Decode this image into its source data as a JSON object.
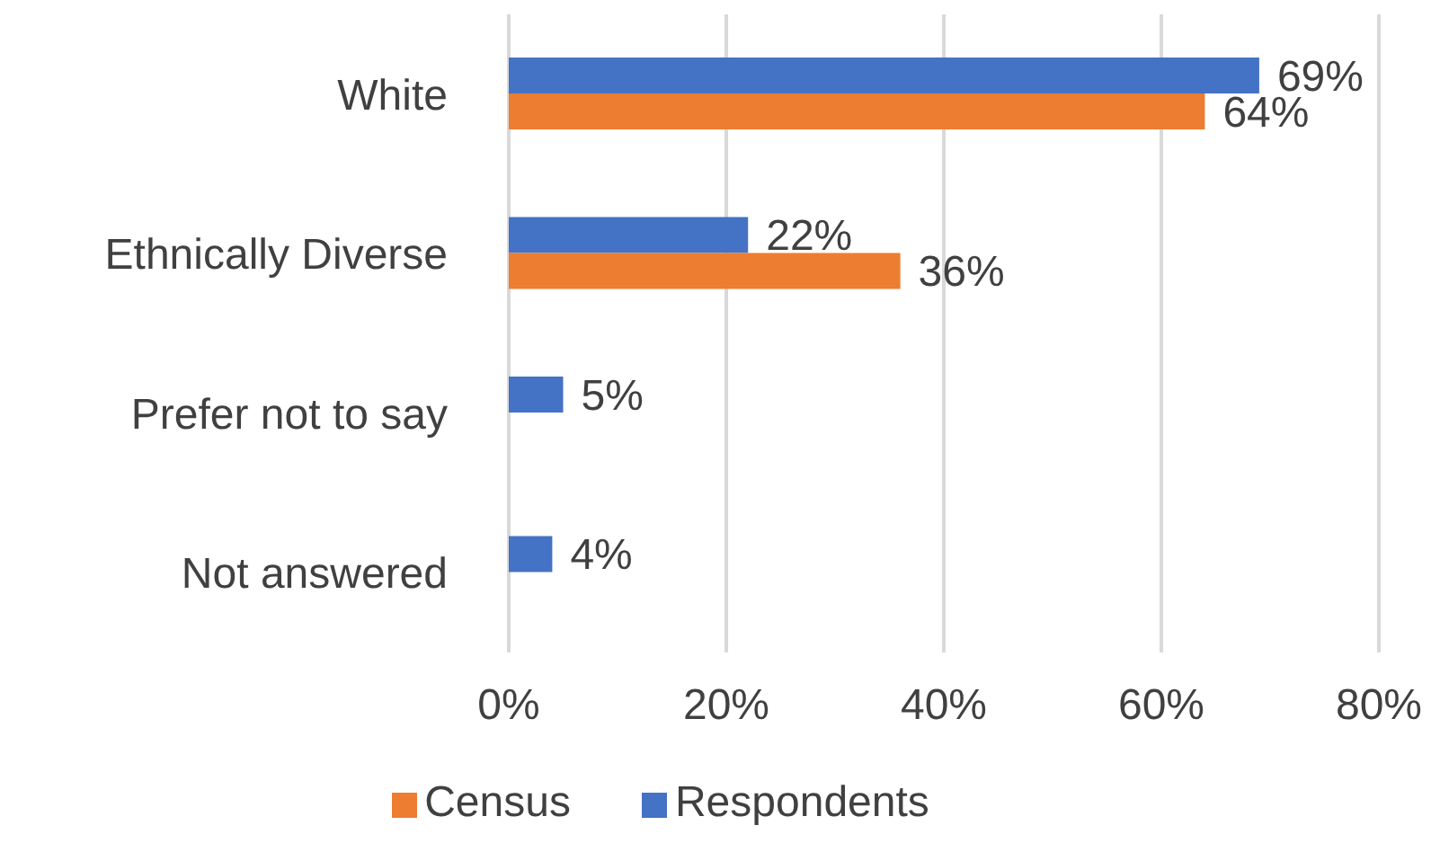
{
  "chart_data": {
    "type": "bar",
    "orientation": "horizontal",
    "categories": [
      "White",
      "Ethnically Diverse",
      "Prefer not to say",
      "Not answered"
    ],
    "series": [
      {
        "name": "Respondents",
        "color": "#4472c4",
        "values": [
          69,
          22,
          5,
          4
        ],
        "value_labels": [
          "69%",
          "22%",
          "5%",
          "4%"
        ]
      },
      {
        "name": "Census",
        "color": "#ed7d31",
        "values": [
          64,
          36,
          null,
          null
        ],
        "value_labels": [
          "64%",
          "36%",
          null,
          null
        ]
      }
    ],
    "xlim": [
      0,
      80
    ],
    "xticks": [
      {
        "value": 0,
        "label": "0%"
      },
      {
        "value": 20,
        "label": "20%"
      },
      {
        "value": 40,
        "label": "40%"
      },
      {
        "value": 60,
        "label": "60%"
      },
      {
        "value": 80,
        "label": "80%"
      }
    ],
    "grid": "x",
    "legend": "bottom"
  }
}
